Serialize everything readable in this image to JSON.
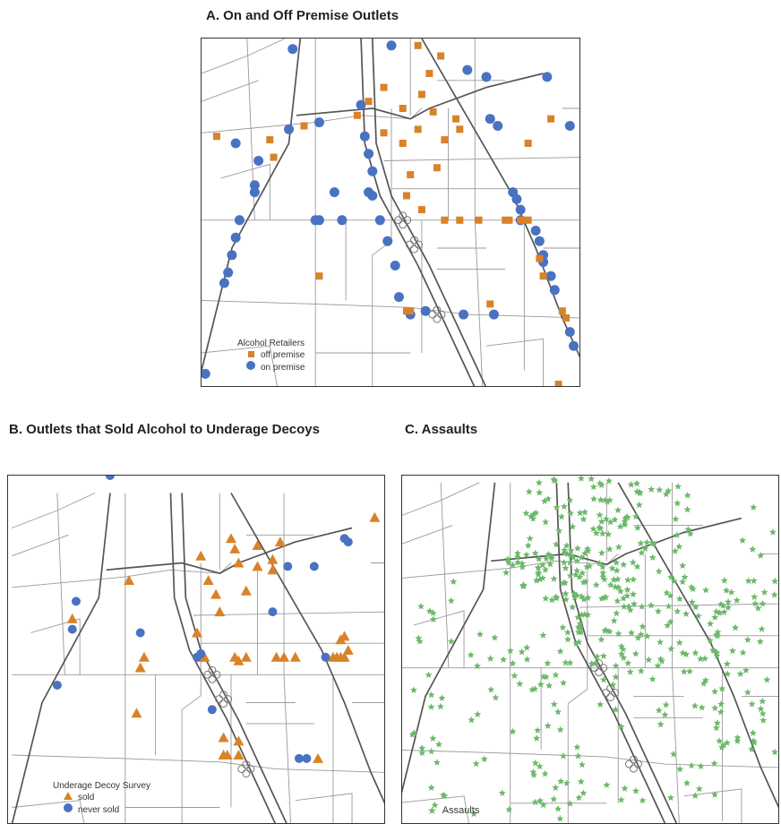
{
  "panels": {
    "a": {
      "title": "A. On and Off Premise Outlets",
      "legend_title": "Alcohol Retailers",
      "legend_items": [
        "off premise",
        "on premise"
      ]
    },
    "b": {
      "title": "B. Outlets that Sold Alcohol to Underage Decoys",
      "legend_title": "Underage Decoy Survey",
      "legend_items": [
        "sold",
        "never sold"
      ]
    },
    "c": {
      "title": "C. Assaults",
      "legend_items": [
        "Assaults"
      ]
    }
  },
  "colors": {
    "off_premise": "#d98229",
    "on_premise": "#4a72c2",
    "sold": "#d98229",
    "never_sold": "#4a72c2",
    "assault": "#6db86b",
    "road": "#9a9a9a",
    "highway": "#555555"
  },
  "icons": {
    "off_premise": "orange-square-icon",
    "on_premise": "blue-circle-icon",
    "sold": "orange-triangle-icon",
    "never_sold": "blue-circle-icon",
    "assault": "green-star-icon"
  }
}
